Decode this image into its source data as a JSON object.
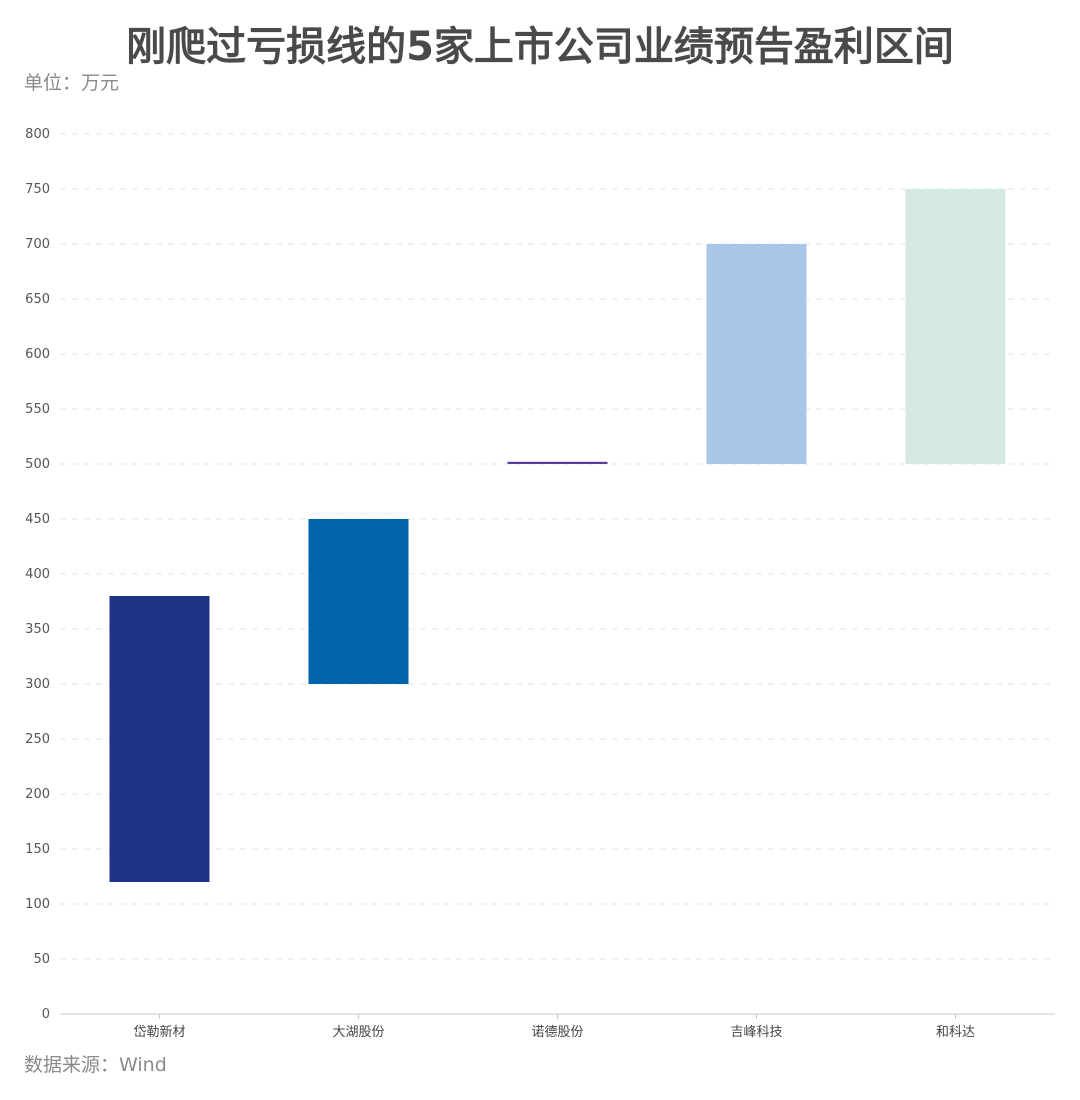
{
  "title": "刚爬过亏损线的5家上市公司业绩预告盈利区间",
  "unit_label": "单位：万元",
  "source_label": "数据来源：Wind",
  "chart_data": {
    "type": "bar",
    "subtype": "floating-range",
    "categories": [
      "岱勒新材",
      "大湖股份",
      "诺德股份",
      "吉峰科技",
      "和科达"
    ],
    "ranges": [
      [
        120,
        380
      ],
      [
        300,
        450
      ],
      [
        500,
        502
      ],
      [
        500,
        700
      ],
      [
        500,
        750
      ]
    ],
    "colors": [
      "#1f3386",
      "#0063ab",
      "#5b3f9a",
      "#a9c6e8",
      "#d4eae2"
    ],
    "ylim": [
      0,
      800
    ],
    "yticks": [
      0,
      50,
      100,
      150,
      200,
      250,
      300,
      350,
      400,
      450,
      500,
      550,
      600,
      650,
      700,
      750,
      800
    ],
    "grid": true,
    "legend": "none"
  }
}
